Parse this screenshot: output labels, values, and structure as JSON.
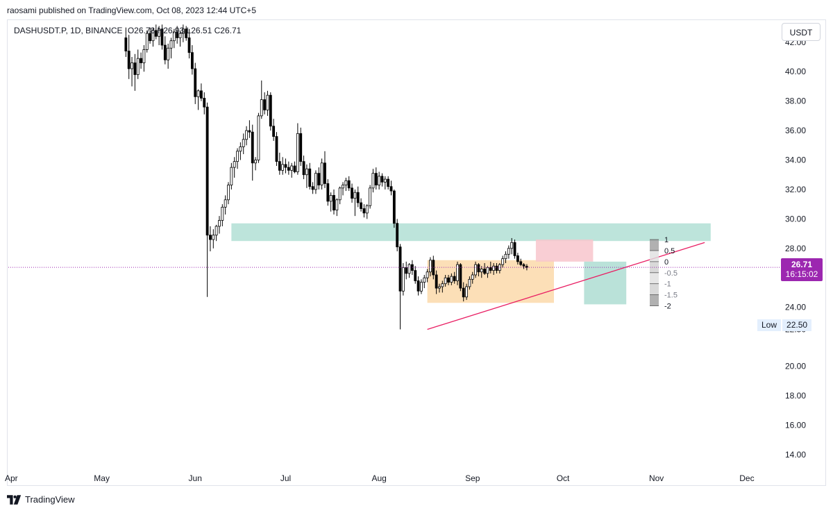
{
  "publish_line": "raosami published on TradingView.com, Oct 08, 2023 12:44 UTC+5",
  "legend": {
    "symbol": "DASHUSDT.P, 1D, BINANCE",
    "ohlc": "O26.78 H26.93 L26.51 C26.71"
  },
  "currency_button": "USDT",
  "price_tag": {
    "price": "26.71",
    "countdown": "16:15:02"
  },
  "low_tag": {
    "label": "Low",
    "value": "22.50"
  },
  "footer": {
    "brand": "TradingView"
  },
  "colors": {
    "up": "#ffffff",
    "down": "#000000",
    "wick": "#000000",
    "current_price": "#9c27b0",
    "support_zone": "#b2dfd5",
    "range_box": "#fbd9aa",
    "stop_zone": "#f8c6cc",
    "target_zone": "#b2dfd5",
    "trendline": "#e91e63"
  },
  "chart_data": {
    "type": "candlestick",
    "y_ticks": [
      "42.00",
      "40.00",
      "38.00",
      "36.00",
      "34.00",
      "32.00",
      "30.00",
      "28.00",
      "24.00",
      "22.50",
      "20.00",
      "18.00",
      "16.00",
      "14.00"
    ],
    "ylim": [
      13.0,
      43.5
    ],
    "x_ticks": [
      "Apr",
      "May",
      "Jun",
      "Jul",
      "Aug",
      "Sep",
      "Oct",
      "Nov",
      "Dec"
    ],
    "x_tick_dates": [
      "2023-04-01",
      "2023-05-01",
      "2023-06-01",
      "2023-07-01",
      "2023-08-01",
      "2023-09-01",
      "2023-10-01",
      "2023-11-01",
      "2023-12-01"
    ],
    "xlim": [
      "2023-03-31",
      "2023-12-10"
    ],
    "current_price": 26.71,
    "low": 22.5,
    "candles_start_date": "2023-05-09",
    "candles": [
      [
        42.3,
        43.0,
        41.0,
        41.4
      ],
      [
        41.4,
        42.5,
        39.5,
        40.2
      ],
      [
        40.2,
        41.0,
        39.0,
        40.6
      ],
      [
        40.6,
        41.2,
        38.7,
        39.8
      ],
      [
        39.8,
        41.5,
        39.5,
        40.9
      ],
      [
        40.9,
        41.3,
        40.2,
        40.6
      ],
      [
        40.6,
        41.8,
        40.0,
        41.5
      ],
      [
        41.5,
        42.8,
        41.3,
        42.6
      ],
      [
        42.6,
        43.0,
        41.9,
        42.1
      ],
      [
        42.1,
        43.0,
        41.7,
        42.8
      ],
      [
        42.8,
        43.2,
        42.2,
        42.4
      ],
      [
        42.4,
        43.1,
        41.8,
        42.9
      ],
      [
        42.9,
        43.2,
        41.5,
        41.8
      ],
      [
        41.8,
        42.4,
        40.5,
        40.8
      ],
      [
        40.8,
        41.9,
        40.2,
        41.6
      ],
      [
        41.6,
        42.3,
        40.9,
        42.1
      ],
      [
        42.1,
        42.9,
        41.6,
        42.7
      ],
      [
        42.7,
        43.1,
        41.9,
        42.3
      ],
      [
        42.3,
        42.8,
        41.7,
        42.6
      ],
      [
        42.6,
        43.2,
        42.0,
        42.9
      ],
      [
        42.9,
        43.1,
        42.1,
        42.3
      ],
      [
        42.3,
        42.9,
        40.9,
        41.3
      ],
      [
        41.3,
        41.8,
        39.8,
        40.2
      ],
      [
        40.2,
        40.6,
        37.8,
        38.3
      ],
      [
        38.3,
        38.8,
        37.4,
        38.7
      ],
      [
        38.7,
        39.2,
        38.0,
        38.2
      ],
      [
        38.2,
        38.6,
        37.1,
        37.6
      ],
      [
        37.6,
        37.9,
        24.7,
        28.9
      ],
      [
        28.9,
        29.5,
        27.8,
        28.6
      ],
      [
        28.6,
        29.3,
        28.0,
        28.9
      ],
      [
        28.9,
        29.6,
        28.5,
        29.5
      ],
      [
        29.5,
        30.2,
        29.0,
        29.9
      ],
      [
        29.9,
        31.0,
        29.5,
        30.8
      ],
      [
        30.8,
        31.6,
        30.3,
        31.3
      ],
      [
        31.3,
        32.5,
        31.0,
        32.3
      ],
      [
        32.3,
        33.8,
        32.0,
        33.5
      ],
      [
        33.5,
        34.2,
        32.8,
        33.9
      ],
      [
        33.9,
        34.8,
        33.4,
        34.6
      ],
      [
        34.6,
        35.2,
        34.0,
        34.9
      ],
      [
        34.9,
        35.8,
        34.4,
        35.4
      ],
      [
        35.4,
        36.3,
        35.0,
        36.0
      ],
      [
        36.0,
        36.7,
        35.5,
        35.9
      ],
      [
        35.9,
        36.4,
        32.6,
        33.8
      ],
      [
        33.8,
        34.2,
        33.3,
        34.0
      ],
      [
        34.0,
        37.2,
        33.8,
        37.0
      ],
      [
        37.0,
        39.4,
        36.8,
        38.1
      ],
      [
        38.1,
        38.6,
        37.1,
        37.4
      ],
      [
        37.4,
        38.7,
        37.0,
        38.4
      ],
      [
        38.4,
        38.6,
        36.0,
        36.3
      ],
      [
        36.3,
        36.8,
        35.3,
        35.6
      ],
      [
        35.6,
        35.9,
        33.6,
        33.9
      ],
      [
        33.9,
        34.5,
        33.0,
        33.3
      ],
      [
        33.3,
        34.2,
        33.0,
        33.7
      ],
      [
        33.7,
        34.1,
        33.1,
        33.5
      ],
      [
        33.5,
        33.9,
        33.0,
        33.3
      ],
      [
        33.3,
        33.8,
        32.8,
        33.6
      ],
      [
        33.6,
        33.9,
        33.1,
        33.2
      ],
      [
        33.2,
        36.5,
        33.0,
        35.8
      ],
      [
        35.8,
        36.2,
        33.6,
        33.9
      ],
      [
        33.9,
        34.3,
        32.7,
        33.0
      ],
      [
        33.0,
        33.7,
        32.1,
        33.4
      ],
      [
        33.4,
        33.8,
        32.0,
        32.2
      ],
      [
        32.2,
        32.5,
        31.7,
        32.0
      ],
      [
        32.0,
        33.3,
        31.7,
        33.1
      ],
      [
        33.1,
        33.5,
        32.0,
        32.3
      ],
      [
        32.3,
        34.1,
        32.0,
        33.8
      ],
      [
        33.8,
        34.6,
        32.1,
        32.4
      ],
      [
        32.4,
        32.7,
        30.9,
        31.2
      ],
      [
        31.2,
        31.8,
        30.5,
        31.6
      ],
      [
        31.6,
        32.0,
        30.3,
        30.6
      ],
      [
        30.6,
        31.4,
        30.2,
        31.3
      ],
      [
        31.3,
        32.2,
        31.0,
        32.1
      ],
      [
        32.1,
        32.5,
        31.6,
        32.3
      ],
      [
        32.3,
        32.8,
        31.9,
        32.6
      ],
      [
        32.6,
        32.9,
        31.9,
        32.1
      ],
      [
        32.1,
        32.4,
        31.1,
        31.4
      ],
      [
        31.4,
        32.0,
        30.2,
        31.8
      ],
      [
        31.8,
        32.2,
        30.8,
        31.1
      ],
      [
        31.1,
        31.4,
        30.5,
        30.7
      ],
      [
        30.7,
        31.0,
        30.1,
        30.4
      ],
      [
        30.4,
        31.0,
        30.0,
        30.9
      ],
      [
        30.9,
        32.3,
        30.7,
        32.1
      ],
      [
        32.1,
        33.4,
        31.8,
        33.1
      ],
      [
        33.1,
        33.5,
        32.0,
        32.3
      ],
      [
        32.3,
        33.2,
        32.0,
        32.9
      ],
      [
        32.9,
        33.1,
        32.2,
        32.5
      ],
      [
        32.5,
        32.9,
        32.0,
        32.7
      ],
      [
        32.7,
        32.9,
        32.0,
        32.2
      ],
      [
        32.2,
        32.6,
        31.6,
        31.9
      ],
      [
        31.9,
        32.0,
        29.4,
        29.7
      ],
      [
        29.7,
        30.0,
        27.8,
        28.1
      ],
      [
        28.1,
        28.3,
        22.5,
        25.1
      ],
      [
        25.1,
        27.0,
        24.8,
        26.7
      ],
      [
        26.7,
        27.1,
        25.9,
        26.3
      ],
      [
        26.3,
        27.0,
        26.0,
        26.9
      ],
      [
        26.9,
        27.2,
        26.2,
        26.5
      ],
      [
        26.5,
        26.8,
        25.6,
        25.8
      ],
      [
        25.8,
        26.1,
        24.8,
        25.1
      ],
      [
        25.1,
        25.9,
        24.9,
        25.7
      ],
      [
        25.7,
        26.2,
        25.3,
        26.0
      ],
      [
        26.0,
        26.6,
        25.7,
        26.4
      ],
      [
        26.4,
        27.4,
        26.1,
        27.2
      ],
      [
        27.2,
        27.5,
        25.9,
        26.2
      ],
      [
        26.2,
        26.5,
        24.9,
        25.3
      ],
      [
        25.3,
        25.6,
        25.0,
        25.4
      ],
      [
        25.4,
        25.8,
        25.0,
        25.6
      ],
      [
        25.6,
        26.2,
        25.4,
        26.0
      ],
      [
        26.0,
        26.2,
        25.5,
        25.7
      ],
      [
        25.7,
        26.3,
        25.5,
        26.1
      ],
      [
        26.1,
        26.4,
        25.6,
        25.8
      ],
      [
        25.8,
        27.1,
        25.5,
        26.9
      ],
      [
        26.9,
        27.0,
        25.1,
        25.3
      ],
      [
        25.3,
        25.7,
        24.4,
        24.7
      ],
      [
        24.7,
        25.6,
        24.5,
        25.4
      ],
      [
        25.4,
        26.1,
        25.2,
        25.9
      ],
      [
        25.9,
        26.4,
        25.6,
        26.2
      ],
      [
        26.2,
        27.1,
        26.0,
        26.9
      ],
      [
        26.9,
        27.0,
        26.1,
        26.4
      ],
      [
        26.4,
        26.8,
        26.0,
        26.6
      ],
      [
        26.6,
        27.0,
        26.2,
        26.3
      ],
      [
        26.3,
        26.8,
        26.0,
        26.7
      ],
      [
        26.7,
        27.1,
        26.3,
        26.5
      ],
      [
        26.5,
        27.0,
        26.2,
        26.8
      ],
      [
        26.8,
        27.0,
        26.3,
        26.5
      ],
      [
        26.5,
        27.0,
        26.3,
        26.9
      ],
      [
        26.9,
        27.5,
        26.7,
        27.3
      ],
      [
        27.3,
        27.8,
        27.0,
        27.6
      ],
      [
        27.6,
        28.2,
        27.3,
        28.0
      ],
      [
        28.0,
        28.7,
        27.6,
        28.4
      ],
      [
        28.4,
        28.6,
        27.3,
        27.5
      ],
      [
        27.5,
        27.7,
        26.9,
        27.1
      ],
      [
        27.1,
        27.3,
        26.8,
        26.9
      ],
      [
        26.9,
        27.0,
        26.6,
        26.8
      ],
      [
        26.78,
        26.93,
        26.51,
        26.71
      ]
    ],
    "trendline": {
      "from": {
        "date": "2023-08-17",
        "price": 22.5
      },
      "to": {
        "date": "2023-11-17",
        "price": 28.4
      }
    },
    "zones": {
      "support_zone": {
        "from": "2023-06-13",
        "to": "2023-11-19",
        "low": 28.5,
        "high": 29.7
      },
      "range_box": {
        "from": "2023-08-17",
        "to": "2023-09-28",
        "low": 24.3,
        "high": 27.2
      },
      "stop_zone": {
        "from": "2023-09-22",
        "to": "2023-10-11",
        "low": 27.1,
        "high": 28.6
      },
      "target_zone": {
        "from": "2023-10-08",
        "to": "2023-10-22",
        "low": 24.2,
        "high": 27.1
      }
    },
    "fib_levels": [
      {
        "label": "1",
        "price": 28.6
      },
      {
        "label": "0.5",
        "price": 27.85
      },
      {
        "label": "0",
        "price": 27.1
      },
      {
        "label": "-0.5",
        "price": 26.35
      },
      {
        "label": "-1",
        "price": 25.6
      },
      {
        "label": "-1.5",
        "price": 24.85
      },
      {
        "label": "-2",
        "price": 24.1
      }
    ]
  }
}
